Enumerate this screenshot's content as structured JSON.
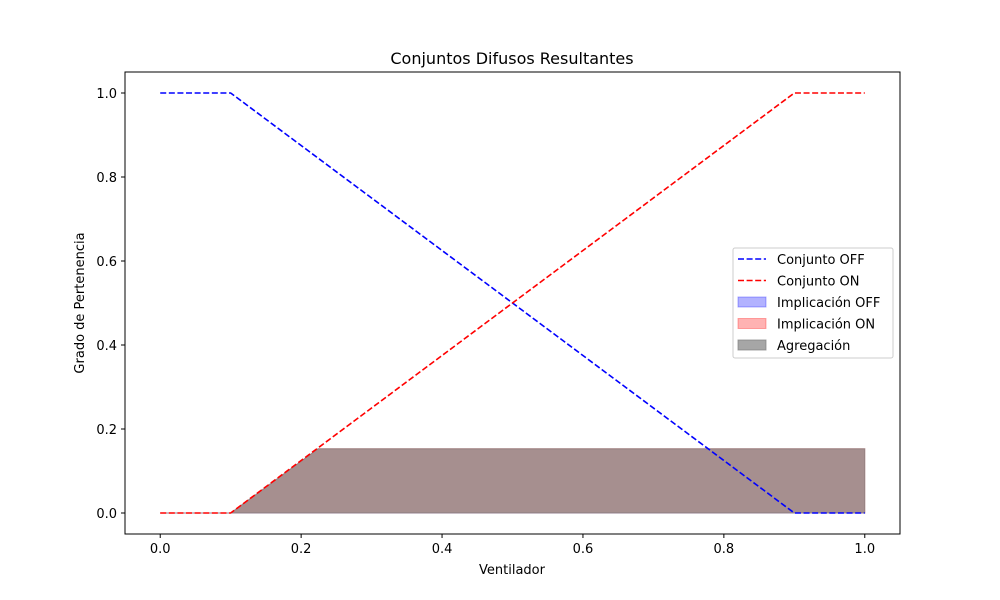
{
  "chart_data": {
    "type": "line",
    "title": "Conjuntos Difusos Resultantes",
    "xlabel": "Ventilador",
    "ylabel": "Grado de Pertenencia",
    "xlim": [
      -0.05,
      1.05
    ],
    "ylim": [
      -0.05,
      1.05
    ],
    "xticks": [
      0.0,
      0.2,
      0.4,
      0.6,
      0.8,
      1.0
    ],
    "yticks": [
      0.0,
      0.2,
      0.4,
      0.6,
      0.8,
      1.0
    ],
    "xtick_labels": [
      "0.0",
      "0.2",
      "0.4",
      "0.6",
      "0.8",
      "1.0"
    ],
    "ytick_labels": [
      "0.0",
      "0.2",
      "0.4",
      "0.6",
      "0.8",
      "1.0"
    ],
    "grid": false,
    "legend_position": "center-right",
    "series": [
      {
        "name": "Conjunto OFF",
        "kind": "line",
        "style": "dashed",
        "color": "#0000ff",
        "x": [
          0.0,
          0.1,
          0.9,
          1.0
        ],
        "y": [
          1.0,
          1.0,
          0.0,
          0.0
        ]
      },
      {
        "name": "Conjunto ON",
        "kind": "line",
        "style": "dashed",
        "color": "#ff0000",
        "x": [
          0.0,
          0.1,
          0.9,
          1.0
        ],
        "y": [
          0.0,
          0.0,
          1.0,
          1.0
        ]
      },
      {
        "name": "Implicación OFF",
        "kind": "fill",
        "color": "#0000ff",
        "opacity": 0.3,
        "x": [
          0.0,
          0.1,
          0.776,
          0.9,
          1.0
        ],
        "y": [
          0.0,
          0.0,
          0.0,
          0.0,
          0.0
        ],
        "y_upper": [
          0.0,
          0.0,
          0.0,
          0.0,
          0.0
        ],
        "note_points": {
          "x": [
            0.776,
            0.9
          ],
          "y": [
            0.153,
            0.0
          ]
        }
      },
      {
        "name": "Implicación ON",
        "kind": "fill",
        "color": "#ff0000",
        "opacity": 0.3,
        "x": [
          0.0,
          0.1,
          0.224,
          1.0
        ],
        "y": [
          0.0,
          0.0,
          0.153,
          0.153
        ]
      },
      {
        "name": "Agregación",
        "kind": "fill",
        "color": "#808080",
        "opacity": 0.7,
        "x": [
          0.0,
          0.1,
          0.224,
          1.0
        ],
        "y": [
          0.0,
          0.0,
          0.153,
          0.153
        ]
      }
    ]
  }
}
